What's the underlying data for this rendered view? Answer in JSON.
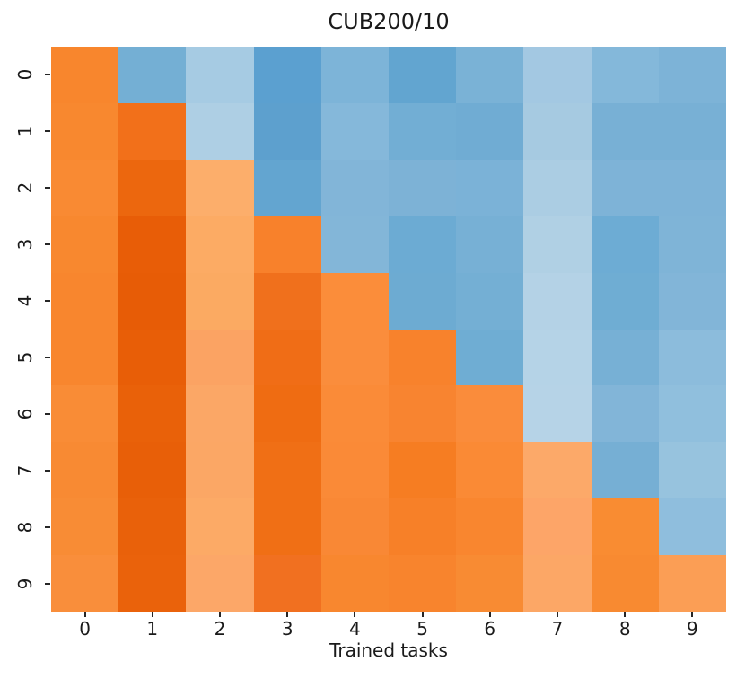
{
  "chart_data": {
    "type": "heatmap",
    "title": "CUB200/10",
    "xlabel": "Trained tasks",
    "ylabel": "",
    "x_ticks": [
      "0",
      "1",
      "2",
      "3",
      "4",
      "5",
      "6",
      "7",
      "8",
      "9"
    ],
    "y_ticks": [
      "0",
      "1",
      "2",
      "3",
      "4",
      "5",
      "6",
      "7",
      "8",
      "9"
    ],
    "y_tick_rotation_deg": 90,
    "grid": false,
    "colorbar": false,
    "encoding_note": "color-encoded matrix: lower triangle incl. diagonal in orange shades, upper triangle in blue shades",
    "accent_orange": "#f8862e",
    "accent_blue": "#74afd4",
    "cell_colors": [
      [
        "#f8862d",
        "#74afd4",
        "#a6cbe3",
        "#5ba0d0",
        "#7db4d8",
        "#62a5d0",
        "#7ab2d6",
        "#a3c8e2",
        "#84b8da",
        "#7db3d7"
      ],
      [
        "#f8882f",
        "#f2701a",
        "#aecfe4",
        "#5da0ce",
        "#85b8da",
        "#72aed4",
        "#70acd3",
        "#a6cae1",
        "#78b0d5",
        "#78b0d5"
      ],
      [
        "#f98a33",
        "#ec670e",
        "#fcae6b",
        "#63a5d0",
        "#82b5d8",
        "#7db2d6",
        "#7bb2d7",
        "#abcde3",
        "#7eb3d7",
        "#7eb3d7"
      ],
      [
        "#f8882f",
        "#e85d07",
        "#fcab64",
        "#f8812b",
        "#83b6d8",
        "#6cabd3",
        "#77b0d5",
        "#b0d0e4",
        "#6dacd4",
        "#7fb4d7"
      ],
      [
        "#f8862e",
        "#e75c06",
        "#fbaa62",
        "#f0701c",
        "#fb8d3a",
        "#6dabd2",
        "#74afd4",
        "#b4d2e6",
        "#6fadd3",
        "#82b5d8"
      ],
      [
        "#f8862e",
        "#e85e07",
        "#fba363",
        "#f06d16",
        "#fa8d3c",
        "#f8822c",
        "#6fadd3",
        "#b5d3e7",
        "#77b0d5",
        "#8cbcdc"
      ],
      [
        "#f98c36",
        "#e96109",
        "#fba766",
        "#ef6c12",
        "#fa8b38",
        "#f88430",
        "#fa8c3b",
        "#b6d3e7",
        "#82b5d8",
        "#90bfdd"
      ],
      [
        "#f88a33",
        "#e85f08",
        "#fba765",
        "#f06f15",
        "#fa8a37",
        "#f67d22",
        "#fa8a35",
        "#fca969",
        "#76afd4",
        "#97c3de"
      ],
      [
        "#f88c35",
        "#e9610a",
        "#fcaa66",
        "#f06f15",
        "#f98835",
        "#f78028",
        "#f9862f",
        "#fda568",
        "#f98c32",
        "#8fbedd"
      ],
      [
        "#f98e3b",
        "#ea620b",
        "#fca768",
        "#f17020",
        "#f8872f",
        "#f8842d",
        "#f88b33",
        "#fca766",
        "#f88a31",
        "#fb9e55"
      ]
    ]
  }
}
